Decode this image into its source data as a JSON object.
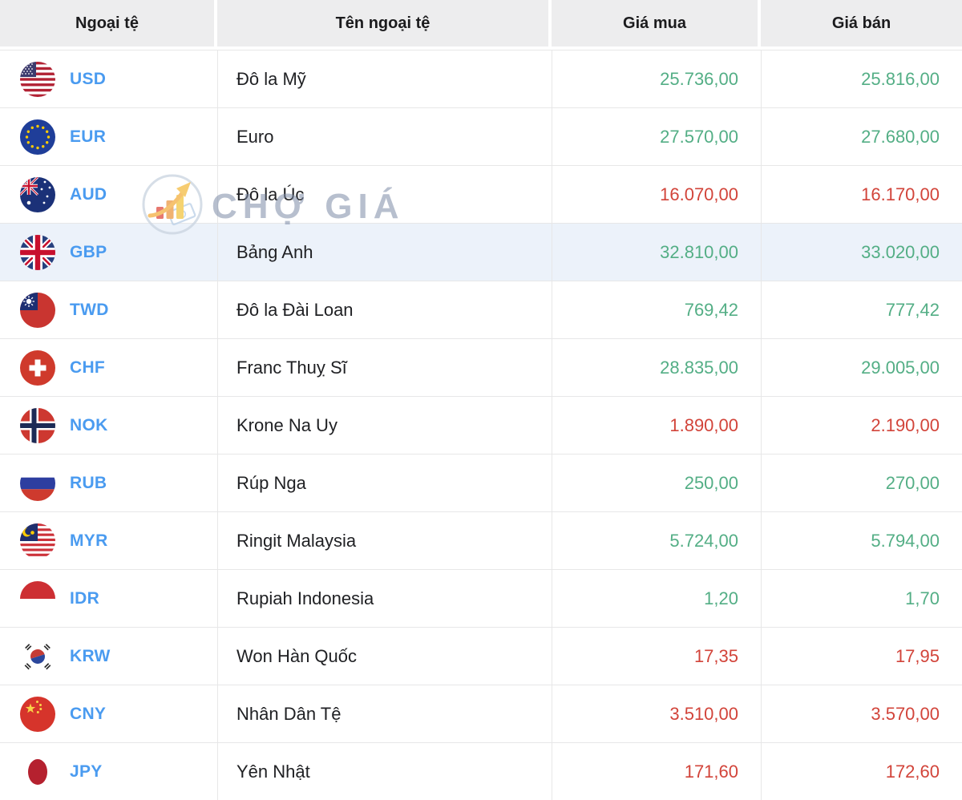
{
  "table": {
    "columns": [
      "Ngoại tệ",
      "Tên ngoại tệ",
      "Giá mua",
      "Giá bán"
    ],
    "rows": [
      {
        "code": "USD",
        "flag": "us-flag-icon",
        "name": "Đô la Mỹ",
        "buy": "25.736,00",
        "sell": "25.816,00",
        "trend": "up",
        "highlighted": false
      },
      {
        "code": "EUR",
        "flag": "eu-flag-icon",
        "name": "Euro",
        "buy": "27.570,00",
        "sell": "27.680,00",
        "trend": "up",
        "highlighted": false
      },
      {
        "code": "AUD",
        "flag": "au-flag-icon",
        "name": "Đô la Úc",
        "buy": "16.070,00",
        "sell": "16.170,00",
        "trend": "down",
        "highlighted": false
      },
      {
        "code": "GBP",
        "flag": "gb-flag-icon",
        "name": "Bảng Anh",
        "buy": "32.810,00",
        "sell": "33.020,00",
        "trend": "up",
        "highlighted": true
      },
      {
        "code": "TWD",
        "flag": "tw-flag-icon",
        "name": "Đô la Đài Loan",
        "buy": "769,42",
        "sell": "777,42",
        "trend": "up",
        "highlighted": false
      },
      {
        "code": "CHF",
        "flag": "ch-flag-icon",
        "name": "Franc Thuỵ Sĩ",
        "buy": "28.835,00",
        "sell": "29.005,00",
        "trend": "up",
        "highlighted": false
      },
      {
        "code": "NOK",
        "flag": "no-flag-icon",
        "name": "Krone Na Uy",
        "buy": "1.890,00",
        "sell": "2.190,00",
        "trend": "down",
        "highlighted": false
      },
      {
        "code": "RUB",
        "flag": "ru-flag-icon",
        "name": "Rúp Nga",
        "buy": "250,00",
        "sell": "270,00",
        "trend": "up",
        "highlighted": false
      },
      {
        "code": "MYR",
        "flag": "my-flag-icon",
        "name": "Ringit Malaysia",
        "buy": "5.724,00",
        "sell": "5.794,00",
        "trend": "up",
        "highlighted": false
      },
      {
        "code": "IDR",
        "flag": "id-flag-icon",
        "name": "Rupiah Indonesia",
        "buy": "1,20",
        "sell": "1,70",
        "trend": "up",
        "highlighted": false
      },
      {
        "code": "KRW",
        "flag": "kr-flag-icon",
        "name": "Won Hàn Quốc",
        "buy": "17,35",
        "sell": "17,95",
        "trend": "down",
        "highlighted": false
      },
      {
        "code": "CNY",
        "flag": "cn-flag-icon",
        "name": "Nhân Dân Tệ",
        "buy": "3.510,00",
        "sell": "3.570,00",
        "trend": "down",
        "highlighted": false
      },
      {
        "code": "JPY",
        "flag": "jp-flag-icon",
        "name": "Yên Nhật",
        "buy": "171,60",
        "sell": "172,60",
        "trend": "down",
        "highlighted": false
      }
    ]
  },
  "watermark": {
    "text": "CHỢ GIÁ",
    "logo": "cho-gia-logo-icon"
  },
  "colors": {
    "up": "#53ae85",
    "down": "#d2443a",
    "code_blue": "#4a9bf0",
    "highlight_row": "#ecf2fa",
    "header_bg": "#ededee",
    "border": "#e7e7e8"
  }
}
